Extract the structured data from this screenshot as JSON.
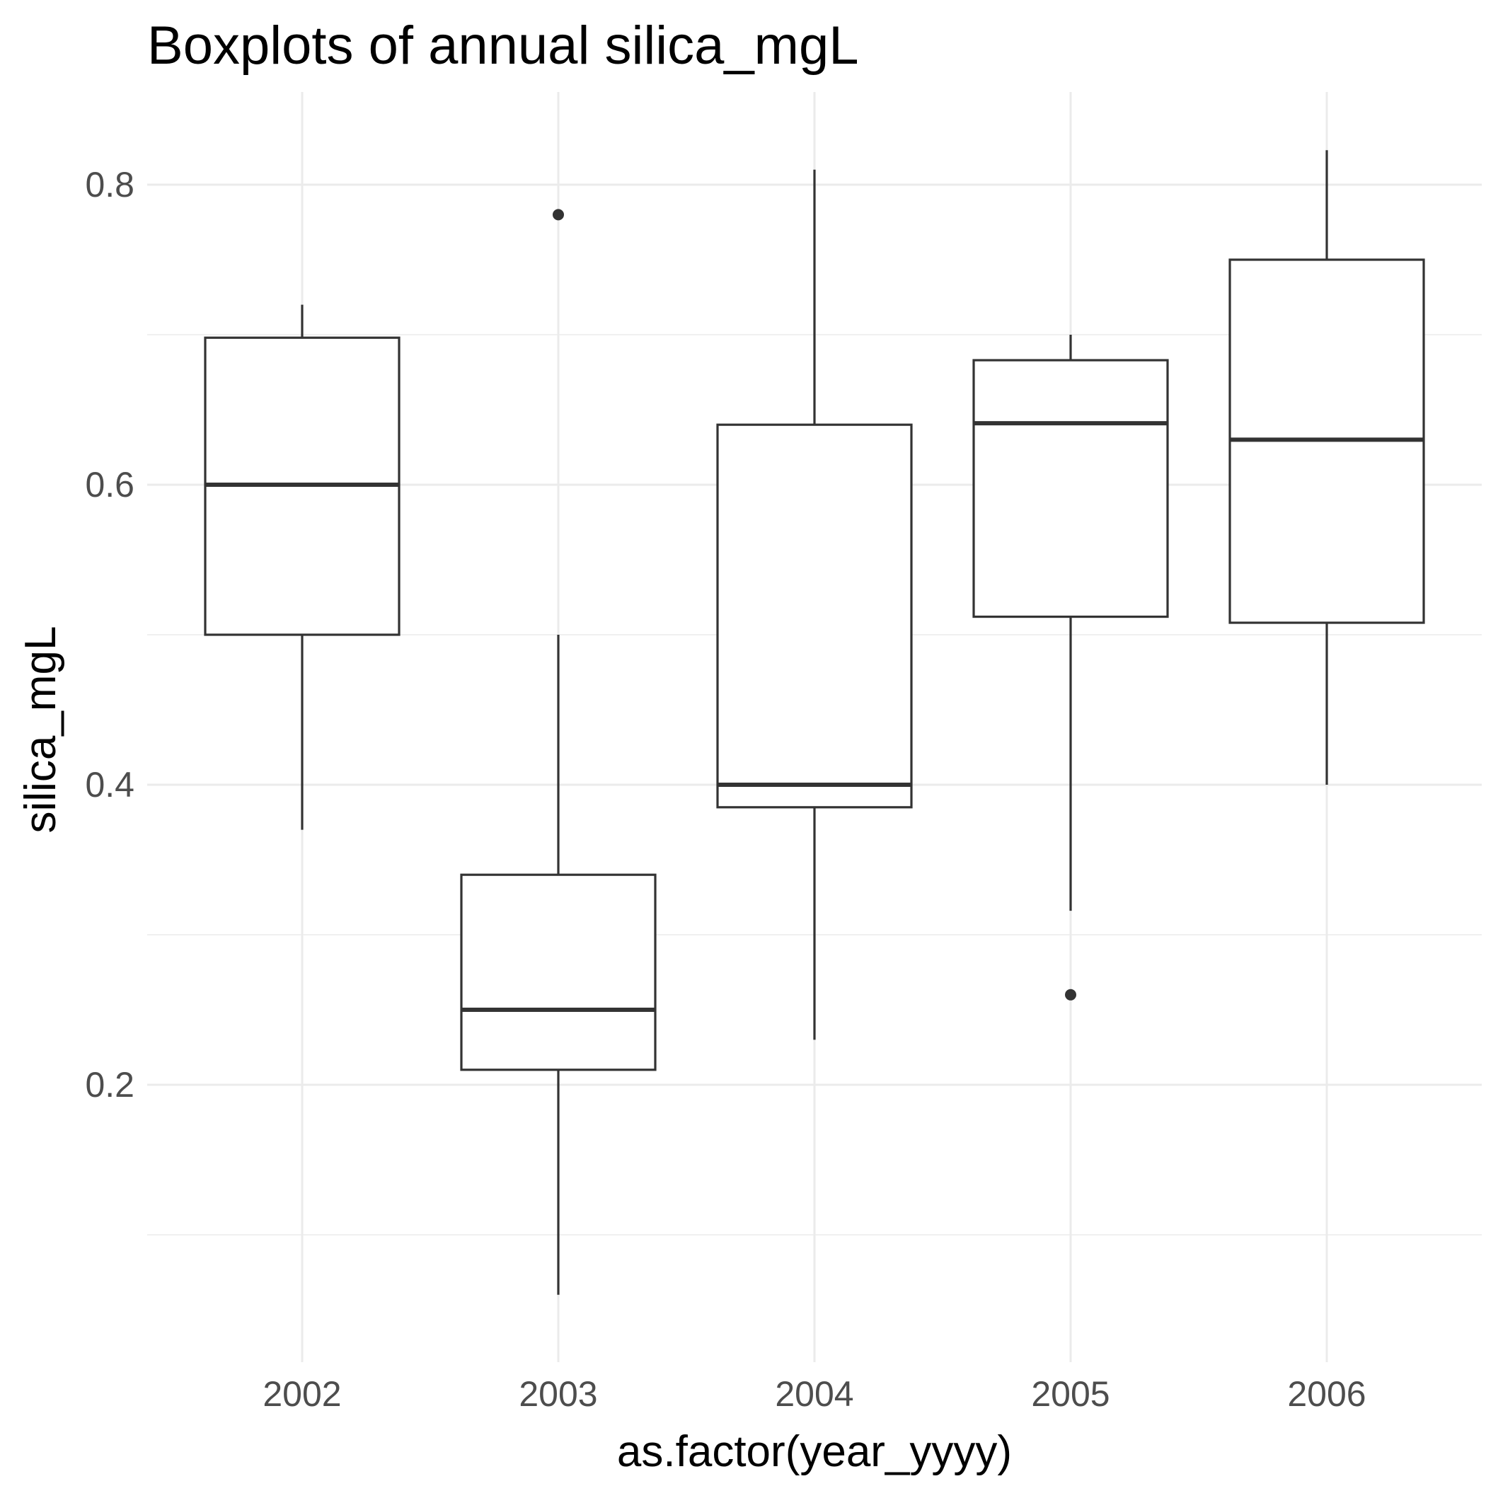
{
  "chart_data": {
    "type": "boxplot",
    "title": "Boxplots of annual silica_mgL",
    "xlabel": "as.factor(year_yyyy)",
    "ylabel": "silica_mgL",
    "ylim": [
      0.03,
      0.86
    ],
    "yticks": [
      0.2,
      0.4,
      0.6,
      0.8
    ],
    "y_tick_labels": [
      "0.2",
      "0.4",
      "0.6",
      "0.8"
    ],
    "y_minor_ticks": [
      0.1,
      0.3,
      0.5,
      0.7
    ],
    "grid": true,
    "categories": [
      "2002",
      "2003",
      "2004",
      "2005",
      "2006"
    ],
    "boxes": [
      {
        "category": "2002",
        "lower_whisker": 0.37,
        "q1": 0.5,
        "median": 0.6,
        "q3": 0.698,
        "upper_whisker": 0.72,
        "outliers": []
      },
      {
        "category": "2003",
        "lower_whisker": 0.06,
        "q1": 0.21,
        "median": 0.25,
        "q3": 0.34,
        "upper_whisker": 0.5,
        "outliers": [
          0.78
        ]
      },
      {
        "category": "2004",
        "lower_whisker": 0.23,
        "q1": 0.385,
        "median": 0.4,
        "q3": 0.64,
        "upper_whisker": 0.81,
        "outliers": []
      },
      {
        "category": "2005",
        "lower_whisker": 0.316,
        "q1": 0.512,
        "median": 0.641,
        "q3": 0.683,
        "upper_whisker": 0.7,
        "outliers": [
          0.26
        ]
      },
      {
        "category": "2006",
        "lower_whisker": 0.4,
        "q1": 0.508,
        "median": 0.63,
        "q3": 0.75,
        "upper_whisker": 0.823,
        "outliers": []
      }
    ]
  }
}
